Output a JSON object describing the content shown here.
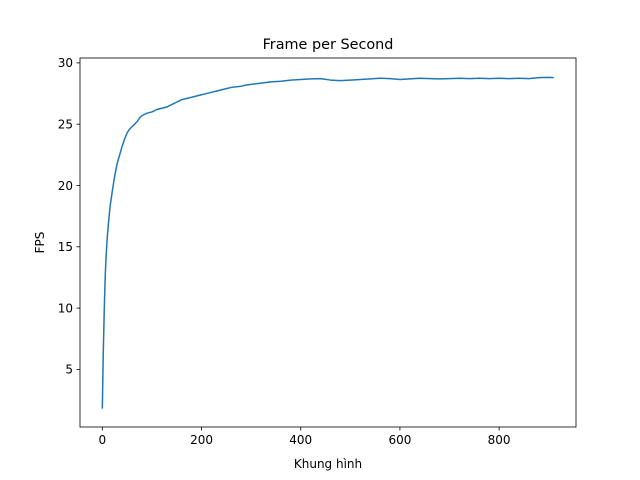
{
  "chart_data": {
    "type": "line",
    "title": "Frame per Second",
    "xlabel": "Khung hình",
    "ylabel": "FPS",
    "xlim": [
      -45,
      955
    ],
    "ylim": [
      0.3,
      30.4
    ],
    "x_ticks": [
      0,
      200,
      400,
      600,
      800
    ],
    "y_ticks": [
      5,
      10,
      15,
      20,
      25,
      30
    ],
    "grid": false,
    "legend": "none",
    "series": [
      {
        "color": "#1f77b4",
        "points": [
          [
            0,
            1.8
          ],
          [
            2,
            6.5
          ],
          [
            4,
            10.0
          ],
          [
            6,
            12.8
          ],
          [
            8,
            14.5
          ],
          [
            10,
            15.8
          ],
          [
            13,
            17.2
          ],
          [
            16,
            18.4
          ],
          [
            20,
            19.5
          ],
          [
            25,
            20.8
          ],
          [
            30,
            21.8
          ],
          [
            35,
            22.5
          ],
          [
            40,
            23.2
          ],
          [
            45,
            23.8
          ],
          [
            50,
            24.3
          ],
          [
            55,
            24.6
          ],
          [
            60,
            24.8
          ],
          [
            65,
            25.0
          ],
          [
            70,
            25.2
          ],
          [
            75,
            25.5
          ],
          [
            80,
            25.7
          ],
          [
            90,
            25.9
          ],
          [
            100,
            26.0
          ],
          [
            110,
            26.2
          ],
          [
            120,
            26.3
          ],
          [
            130,
            26.4
          ],
          [
            140,
            26.6
          ],
          [
            150,
            26.8
          ],
          [
            160,
            27.0
          ],
          [
            170,
            27.1
          ],
          [
            180,
            27.2
          ],
          [
            190,
            27.3
          ],
          [
            200,
            27.4
          ],
          [
            210,
            27.5
          ],
          [
            220,
            27.6
          ],
          [
            230,
            27.7
          ],
          [
            240,
            27.8
          ],
          [
            250,
            27.9
          ],
          [
            260,
            28.0
          ],
          [
            270,
            28.05
          ],
          [
            280,
            28.1
          ],
          [
            290,
            28.2
          ],
          [
            300,
            28.25
          ],
          [
            320,
            28.35
          ],
          [
            340,
            28.45
          ],
          [
            360,
            28.5
          ],
          [
            380,
            28.6
          ],
          [
            400,
            28.65
          ],
          [
            420,
            28.7
          ],
          [
            440,
            28.72
          ],
          [
            460,
            28.6
          ],
          [
            480,
            28.55
          ],
          [
            500,
            28.6
          ],
          [
            520,
            28.65
          ],
          [
            540,
            28.7
          ],
          [
            560,
            28.75
          ],
          [
            580,
            28.72
          ],
          [
            600,
            28.65
          ],
          [
            620,
            28.7
          ],
          [
            640,
            28.75
          ],
          [
            660,
            28.72
          ],
          [
            680,
            28.7
          ],
          [
            700,
            28.72
          ],
          [
            720,
            28.75
          ],
          [
            740,
            28.72
          ],
          [
            760,
            28.75
          ],
          [
            780,
            28.72
          ],
          [
            800,
            28.75
          ],
          [
            820,
            28.72
          ],
          [
            840,
            28.75
          ],
          [
            860,
            28.72
          ],
          [
            880,
            28.8
          ],
          [
            900,
            28.82
          ],
          [
            910,
            28.8
          ]
        ]
      }
    ]
  }
}
